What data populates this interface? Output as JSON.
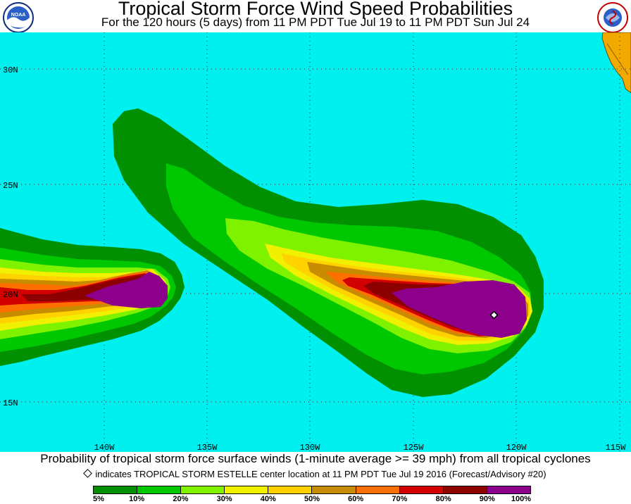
{
  "header": {
    "title": "Tropical Storm Force Wind Speed Probabilities",
    "subtitle": "For the 120 hours (5 days) from 11 PM PDT Tue Jul 19 to 11 PM PDT Sun Jul 24",
    "left_logo": "NOAA",
    "right_logo": "NATIONAL WEATHER SERVICE"
  },
  "map": {
    "ocean_color": "#00f0f0",
    "land_color": "#f2aa00",
    "lat_labels": [
      "30N",
      "25N",
      "20N",
      "15N"
    ],
    "lon_labels": [
      "140W",
      "135W",
      "130W",
      "125W",
      "120W",
      "115W"
    ],
    "storm_center": {
      "lat": 18.9,
      "lon": -121.1
    }
  },
  "footer": {
    "caption": "Probability of tropical storm force surface winds (1-minute average >= 39 mph) from all tropical cyclones",
    "marker_note": "indicates TROPICAL STORM ESTELLE center location at 11 PM PDT Tue Jul 19 2016 (Forecast/Advisory #20)"
  },
  "legend": {
    "labels": [
      "5%",
      "10%",
      "20%",
      "30%",
      "40%",
      "50%",
      "60%",
      "70%",
      "80%",
      "90%",
      "100%"
    ],
    "colors": [
      "#009000",
      "#00c800",
      "#7ff200",
      "#f0f000",
      "#ffd200",
      "#c88c00",
      "#ff7000",
      "#d20000",
      "#8c0000",
      "#8c008c"
    ]
  }
}
